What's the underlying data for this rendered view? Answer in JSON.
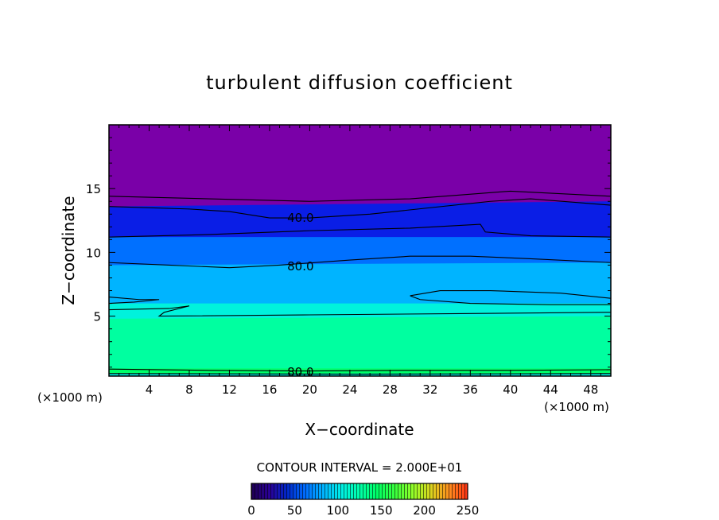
{
  "chart_data": {
    "type": "heatmap",
    "title": "turbulent diffusion coefficient",
    "xlabel": "X−coordinate",
    "ylabel": "Z−coordinate",
    "x_unit_left": "(×1000 m)",
    "x_unit_right": "(×1000 m)",
    "xlim": [
      0,
      50
    ],
    "ylim": [
      0.3,
      20
    ],
    "xticks": [
      4,
      8,
      12,
      16,
      20,
      24,
      28,
      32,
      36,
      40,
      44,
      48
    ],
    "yticks": [
      5,
      10,
      15
    ],
    "contour_interval_label": "CONTOUR INTERVAL = 2.000E+01",
    "colorbar": {
      "min": 0,
      "max": 250,
      "ticks": [
        0,
        50,
        100,
        150,
        200,
        250
      ],
      "colors": [
        "#1e0050",
        "#2a0096",
        "#0028c8",
        "#006eff",
        "#00b4ff",
        "#00f0e6",
        "#00ffaa",
        "#00ff64",
        "#3cff3c",
        "#96ff28",
        "#dcd21e",
        "#ff8c1e",
        "#ff3214"
      ]
    },
    "fill_bands": [
      {
        "z_bottom_left": 13.6,
        "z_bottom_right": 14.0,
        "value": 30,
        "color": "#0a1ee6"
      },
      {
        "z_bottom_left": 11.2,
        "z_bottom_right": 11.2,
        "value": 50,
        "color": "#0070ff"
      },
      {
        "z_bottom_left": 9.0,
        "z_bottom_right": 9.2,
        "value": 70,
        "color": "#00b4ff"
      },
      {
        "z_bottom_left": 6.0,
        "z_bottom_right": 6.0,
        "value": 90,
        "color": "#00f2dc"
      },
      {
        "z_bottom_left": 4.8,
        "z_bottom_right": 5.0,
        "value": 100,
        "color": "#00ffa0"
      },
      {
        "z_bottom_left": 0.9,
        "z_bottom_right": 0.9,
        "value": 110,
        "color": "#00ff6a"
      },
      {
        "z_bottom_left": 0.5,
        "z_bottom_right": 0.5,
        "value": 80,
        "color": "#00e6dc"
      },
      {
        "z_bottom_left": 0.3,
        "z_bottom_right": 0.3,
        "value": 60,
        "color": "#00a0ff"
      }
    ],
    "top_value": 0,
    "top_color": "#7a00a8",
    "contours": [
      {
        "level": 20,
        "points": [
          [
            0,
            14.4
          ],
          [
            10,
            14.2
          ],
          [
            20,
            14.0
          ],
          [
            30,
            14.2
          ],
          [
            40,
            14.8
          ],
          [
            50,
            14.4
          ]
        ],
        "label": ""
      },
      {
        "level": 40,
        "points": [
          [
            0,
            13.6
          ],
          [
            8,
            13.4
          ],
          [
            12,
            13.2
          ],
          [
            16,
            12.7
          ],
          [
            20,
            12.7
          ],
          [
            26,
            13.0
          ],
          [
            32,
            13.5
          ],
          [
            38,
            14.0
          ],
          [
            42,
            14.2
          ],
          [
            50,
            13.7
          ]
        ],
        "label": "40.0",
        "label_at": [
          17.5,
          12.7
        ]
      },
      {
        "level": 60,
        "points": [
          [
            0,
            11.2
          ],
          [
            10,
            11.4
          ],
          [
            20,
            11.7
          ],
          [
            30,
            11.9
          ],
          [
            37,
            12.2
          ],
          [
            37.5,
            11.6
          ],
          [
            42,
            11.3
          ],
          [
            50,
            11.2
          ]
        ],
        "label": ""
      },
      {
        "level": 80,
        "points": [
          [
            0,
            9.2
          ],
          [
            6,
            9.0
          ],
          [
            12,
            8.8
          ],
          [
            17,
            9.0
          ],
          [
            24,
            9.4
          ],
          [
            30,
            9.7
          ],
          [
            36,
            9.7
          ],
          [
            42,
            9.5
          ],
          [
            50,
            9.2
          ]
        ],
        "label": "80.0",
        "label_at": [
          17.5,
          8.9
        ]
      },
      {
        "level": 100,
        "points": [
          [
            0,
            6.5
          ],
          [
            3,
            6.3
          ],
          [
            5,
            6.3
          ],
          [
            2.5,
            6.1
          ],
          [
            0,
            6.0
          ]
        ],
        "label": ""
      },
      {
        "level": 100,
        "points": [
          [
            0,
            5.5
          ],
          [
            6,
            5.6
          ],
          [
            8,
            5.8
          ],
          [
            5.5,
            5.3
          ],
          [
            5,
            5.0
          ],
          [
            20,
            5.1
          ],
          [
            35,
            5.2
          ],
          [
            50,
            5.3
          ]
        ],
        "label": ""
      },
      {
        "level": 100,
        "points": [
          [
            30,
            6.6
          ],
          [
            33,
            7.0
          ],
          [
            38,
            7.0
          ],
          [
            45,
            6.8
          ],
          [
            50,
            6.4
          ],
          [
            50,
            5.9
          ],
          [
            44,
            5.9
          ],
          [
            36,
            6.0
          ],
          [
            31,
            6.3
          ],
          [
            30,
            6.6
          ]
        ],
        "label": ""
      },
      {
        "level": 80,
        "points": [
          [
            0,
            0.85
          ],
          [
            10,
            0.75
          ],
          [
            20,
            0.7
          ],
          [
            30,
            0.75
          ],
          [
            40,
            0.75
          ],
          [
            50,
            0.8
          ]
        ],
        "label": "80.0",
        "label_at": [
          17.5,
          0.6
        ]
      },
      {
        "level": 60,
        "points": [
          [
            0,
            0.5
          ],
          [
            25,
            0.45
          ],
          [
            50,
            0.5
          ]
        ],
        "label": ""
      }
    ]
  }
}
